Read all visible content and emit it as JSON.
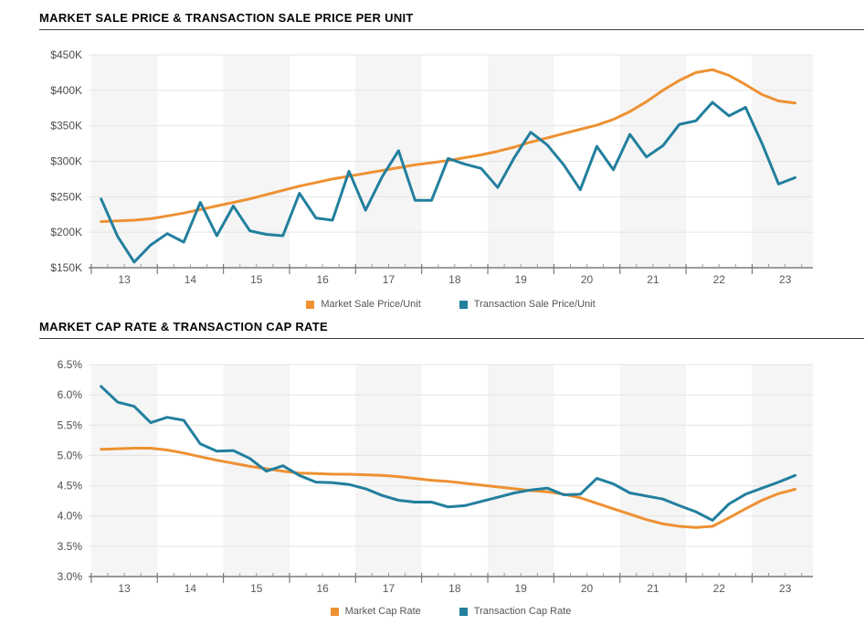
{
  "page": {
    "background": "#ffffff"
  },
  "colors": {
    "band": "#f5f5f5",
    "grid": "#e4e4e4",
    "axis_line": "#7a7a7a",
    "major_tick": "#7a7a7a",
    "minor_tick": "#9a9a9a",
    "y_label": "#4d4d4d",
    "x_label": "#595959",
    "legend_text": "#555555",
    "title_text": "#060606",
    "market_orange": "#EE9133",
    "transaction_teal": "#227F9E"
  },
  "chart_data": [
    {
      "type": "line",
      "title": "MARKET SALE PRICE & TRANSACTION SALE PRICE PER UNIT",
      "x": [
        12.65,
        12.9,
        13.15,
        13.4,
        13.65,
        13.9,
        14.15,
        14.4,
        14.65,
        14.9,
        15.15,
        15.4,
        15.65,
        15.9,
        16.15,
        16.4,
        16.65,
        16.9,
        17.15,
        17.4,
        17.65,
        17.9,
        18.15,
        18.4,
        18.65,
        18.9,
        19.15,
        19.4,
        19.65,
        19.9,
        20.15,
        20.4,
        20.65,
        20.9,
        21.15,
        21.4,
        21.65,
        21.9,
        22.15,
        22.4,
        22.65,
        22.9,
        23.15
      ],
      "series": [
        {
          "name": "Market Sale Price/Unit",
          "color": "#EE9133",
          "values": [
            215,
            216,
            217,
            219,
            223,
            227,
            232,
            237,
            242,
            247,
            253,
            259,
            265,
            270,
            275,
            279,
            283,
            287,
            291,
            295,
            298,
            301,
            305,
            309,
            314,
            320,
            327,
            333,
            339,
            345,
            351,
            359,
            370,
            384,
            400,
            414,
            425,
            429,
            421,
            408,
            394,
            385,
            382
          ]
        },
        {
          "name": "Transaction Sale Price/Unit",
          "color": "#227F9E",
          "values": [
            247,
            194,
            158,
            182,
            198,
            186,
            242,
            195,
            237,
            202,
            197,
            195,
            255,
            220,
            217,
            286,
            231,
            278,
            315,
            245,
            245,
            304,
            296,
            290,
            263,
            305,
            341,
            323,
            295,
            260,
            321,
            288,
            338,
            306,
            322,
            352,
            357,
            383,
            364,
            376,
            325,
            268,
            277
          ]
        }
      ],
      "ylim": [
        150,
        450
      ],
      "yticks": [
        150,
        200,
        250,
        300,
        350,
        400,
        450
      ],
      "ytick_labels": [
        "$150K",
        "$200K",
        "$250K",
        "$300K",
        "$350K",
        "$400K",
        "$450K"
      ],
      "xlim": [
        12.46,
        23.42
      ],
      "xticks": [
        13,
        14,
        15,
        16,
        17,
        18,
        19,
        20,
        21,
        22,
        23
      ],
      "xtick_labels": [
        "13",
        "14",
        "15",
        "16",
        "17",
        "18",
        "19",
        "20",
        "21",
        "22",
        "23"
      ],
      "band_years": [
        13,
        15,
        17,
        19,
        21,
        23
      ],
      "grid": "horizontal",
      "legend_position": "bottom-center"
    },
    {
      "type": "line",
      "title": "MARKET CAP RATE & TRANSACTION CAP RATE",
      "x": [
        12.65,
        12.9,
        13.15,
        13.4,
        13.65,
        13.9,
        14.15,
        14.4,
        14.65,
        14.9,
        15.15,
        15.4,
        15.65,
        15.9,
        16.15,
        16.4,
        16.65,
        16.9,
        17.15,
        17.4,
        17.65,
        17.9,
        18.15,
        18.4,
        18.65,
        18.9,
        19.15,
        19.4,
        19.65,
        19.9,
        20.15,
        20.4,
        20.65,
        20.9,
        21.15,
        21.4,
        21.65,
        21.9,
        22.15,
        22.4,
        22.65,
        22.9,
        23.15
      ],
      "series": [
        {
          "name": "Market Cap Rate",
          "color": "#EE9133",
          "values": [
            5.1,
            5.11,
            5.12,
            5.12,
            5.09,
            5.04,
            4.98,
            4.92,
            4.87,
            4.82,
            4.78,
            4.74,
            4.71,
            4.7,
            4.69,
            4.69,
            4.68,
            4.67,
            4.65,
            4.62,
            4.59,
            4.57,
            4.54,
            4.51,
            4.48,
            4.45,
            4.42,
            4.4,
            4.36,
            4.3,
            4.21,
            4.12,
            4.03,
            3.94,
            3.87,
            3.83,
            3.81,
            3.83,
            3.97,
            4.12,
            4.26,
            4.37,
            4.44
          ]
        },
        {
          "name": "Transaction Cap Rate",
          "color": "#227F9E",
          "values": [
            6.14,
            5.88,
            5.81,
            5.54,
            5.63,
            5.58,
            5.19,
            5.07,
            5.08,
            4.95,
            4.74,
            4.83,
            4.67,
            4.56,
            4.55,
            4.52,
            4.45,
            4.34,
            4.26,
            4.23,
            4.23,
            4.15,
            4.17,
            4.24,
            4.31,
            4.38,
            4.43,
            4.46,
            4.35,
            4.36,
            4.62,
            4.53,
            4.38,
            4.33,
            4.28,
            4.17,
            4.07,
            3.93,
            4.2,
            4.36,
            4.46,
            4.56,
            4.67
          ]
        }
      ],
      "ylim": [
        3.0,
        6.5
      ],
      "yticks": [
        3.0,
        3.5,
        4.0,
        4.5,
        5.0,
        5.5,
        6.0,
        6.5
      ],
      "ytick_labels": [
        "3.0%",
        "3.5%",
        "4.0%",
        "4.5%",
        "5.0%",
        "5.5%",
        "6.0%",
        "6.5%"
      ],
      "xlim": [
        12.46,
        23.42
      ],
      "xticks": [
        13,
        14,
        15,
        16,
        17,
        18,
        19,
        20,
        21,
        22,
        23
      ],
      "xtick_labels": [
        "13",
        "14",
        "15",
        "16",
        "17",
        "18",
        "19",
        "20",
        "21",
        "22",
        "23"
      ],
      "band_years": [
        13,
        15,
        17,
        19,
        21,
        23
      ],
      "grid": "horizontal",
      "legend_position": "bottom-center"
    }
  ]
}
